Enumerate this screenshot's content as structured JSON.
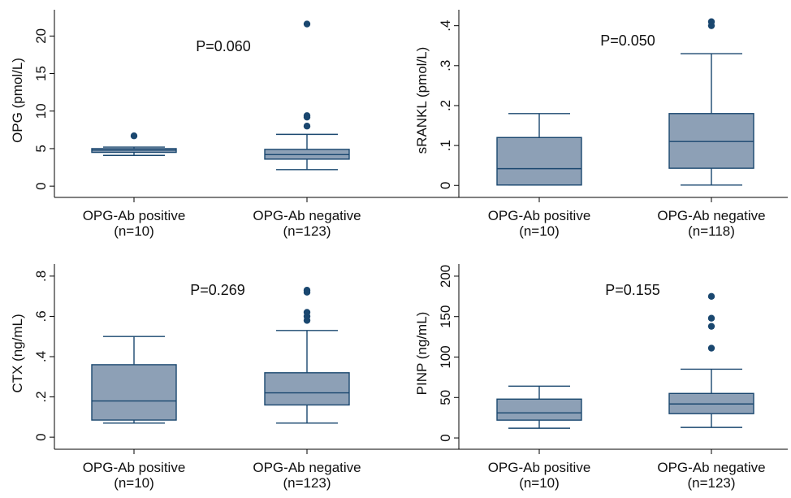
{
  "chart_data": [
    {
      "type": "box",
      "ylabel": "OPG (pmol/L)",
      "annotation": "P=0.060",
      "ylim": [
        -1.5,
        23.5
      ],
      "yticks": [
        0,
        5,
        10,
        15,
        20
      ],
      "ytick_labels": [
        "0",
        "5",
        "10",
        "15",
        "20"
      ],
      "categories": [
        "OPG-Ab positive\n(n=10)",
        "OPG-Ab negative\n(n=123)"
      ],
      "boxes": [
        {
          "min": 4.1,
          "q1": 4.5,
          "median": 4.8,
          "q3": 5.0,
          "max": 5.2,
          "outliers": [
            6.7
          ]
        },
        {
          "min": 2.2,
          "q1": 3.6,
          "median": 4.2,
          "q3": 4.9,
          "max": 6.9,
          "outliers": [
            8.0,
            9.2,
            9.4,
            21.6
          ]
        }
      ]
    },
    {
      "type": "box",
      "ylabel": "sRANKL (pmol/L)",
      "annotation": "P=0.050",
      "ylim": [
        -0.03,
        0.44
      ],
      "yticks": [
        0,
        0.1,
        0.2,
        0.3,
        0.4
      ],
      "ytick_labels": [
        "0",
        ".1",
        ".2",
        ".3",
        ".4"
      ],
      "categories": [
        "OPG-Ab positive\n(n=10)",
        "OPG-Ab negative\n(n=118)"
      ],
      "boxes": [
        {
          "min": 0.001,
          "q1": 0.001,
          "median": 0.042,
          "q3": 0.12,
          "max": 0.18,
          "outliers": []
        },
        {
          "min": 0.001,
          "q1": 0.043,
          "median": 0.11,
          "q3": 0.18,
          "max": 0.33,
          "outliers": [
            0.4,
            0.41
          ]
        }
      ]
    },
    {
      "type": "box",
      "ylabel": "CTX (ng/mL)",
      "annotation": "P=0.269",
      "ylim": [
        -0.06,
        0.86
      ],
      "yticks": [
        0,
        0.2,
        0.4,
        0.6,
        0.8
      ],
      "ytick_labels": [
        "0",
        ".2",
        ".4",
        ".6",
        ".8"
      ],
      "categories": [
        "OPG-Ab positive\n(n=10)",
        "OPG-Ab negative\n(n=123)"
      ],
      "boxes": [
        {
          "min": 0.07,
          "q1": 0.085,
          "median": 0.18,
          "q3": 0.36,
          "max": 0.5,
          "outliers": []
        },
        {
          "min": 0.07,
          "q1": 0.16,
          "median": 0.22,
          "q3": 0.32,
          "max": 0.53,
          "outliers": [
            0.58,
            0.6,
            0.62,
            0.72,
            0.73
          ]
        }
      ]
    },
    {
      "type": "box",
      "ylabel": "PINP (ng/mL)",
      "annotation": "P=0.155",
      "ylim": [
        -14,
        215
      ],
      "yticks": [
        0,
        50,
        100,
        150,
        200
      ],
      "ytick_labels": [
        "0",
        "50",
        "100",
        "150",
        "200"
      ],
      "categories": [
        "OPG-Ab positive\n(n=10)",
        "OPG-Ab negative\n(n=123)"
      ],
      "boxes": [
        {
          "min": 12,
          "q1": 22,
          "median": 31,
          "q3": 48,
          "max": 64,
          "outliers": []
        },
        {
          "min": 13,
          "q1": 30,
          "median": 42,
          "q3": 55,
          "max": 85,
          "outliers": [
            111,
            138,
            148,
            175
          ]
        }
      ]
    }
  ],
  "colors": {
    "box_fill": "#8da0b6",
    "box_stroke": "#1a476f",
    "outlier": "#1a476f",
    "axis": "#000000"
  }
}
